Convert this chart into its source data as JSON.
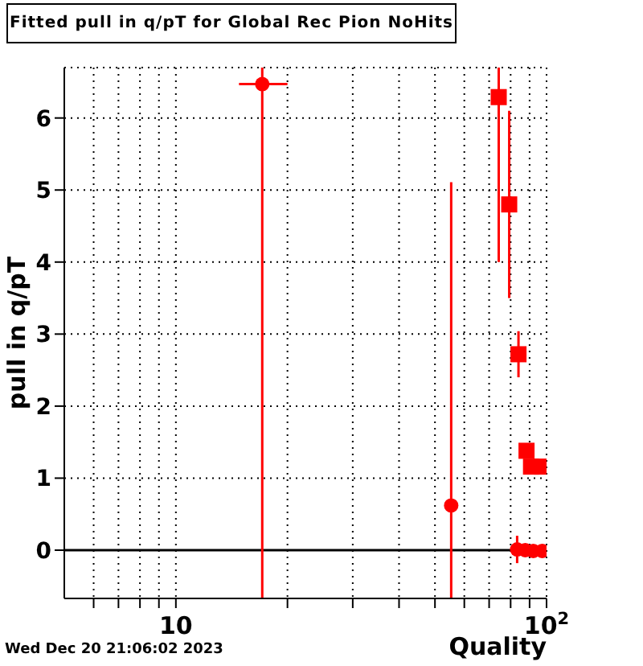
{
  "chart_data": {
    "type": "scatter",
    "title": "Fitted pull in q/pT for Global Rec Pion NoHits",
    "xlabel": "Quality",
    "ylabel": "pull in q/pT",
    "annotations": [
      "Wed Dec 20 21:06:02 2023"
    ],
    "log": "x",
    "xlim": [
      5,
      100
    ],
    "xticks": [
      {
        "value": 6,
        "label": null
      },
      {
        "value": 7,
        "label": null
      },
      {
        "value": 8,
        "label": null
      },
      {
        "value": 9,
        "label": null
      },
      {
        "value": 10,
        "label": "10"
      },
      {
        "value": 20,
        "label": null
      },
      {
        "value": 30,
        "label": null
      },
      {
        "value": 40,
        "label": null
      },
      {
        "value": 50,
        "label": null
      },
      {
        "value": 60,
        "label": null
      },
      {
        "value": 70,
        "label": null
      },
      {
        "value": 80,
        "label": null
      },
      {
        "value": 90,
        "label": null
      },
      {
        "value": 100,
        "label": "10$^{2}$"
      }
    ],
    "ylim": [
      -0.67,
      6.7
    ],
    "yticks": [
      0,
      1,
      2,
      3,
      4,
      5,
      6
    ],
    "grid": true,
    "ref_lines": [
      {
        "axis": "y",
        "value": 0,
        "color": "#000000"
      }
    ],
    "series": [
      {
        "color": "#ff0000",
        "marker": "circle",
        "x": [
          17.1,
          55.3,
          83.3,
          87.6,
          92.1,
          97.3
        ],
        "values": [
          6.47,
          0.62,
          0.01,
          0,
          -0.01,
          -0.01
        ],
        "errors": [
          [
            -0.67,
            6.7
          ],
          [
            -0.67,
            5.11
          ],
          0.19,
          null,
          null,
          null
        ],
        "xerrors": [
          [
            14.8,
            20
          ],
          null,
          null,
          null,
          null,
          null
        ]
      },
      {
        "color": "#ff0000",
        "marker": "square",
        "x": [
          74.3,
          79.3,
          84,
          88.3,
          90.8,
          97.3
        ],
        "values": [
          6.29,
          4.8,
          2.72,
          1.38,
          1.16,
          1.16
        ],
        "errors": [
          [
            4.0,
            6.7
          ],
          1.3,
          0.32,
          null,
          null,
          null
        ]
      }
    ]
  }
}
